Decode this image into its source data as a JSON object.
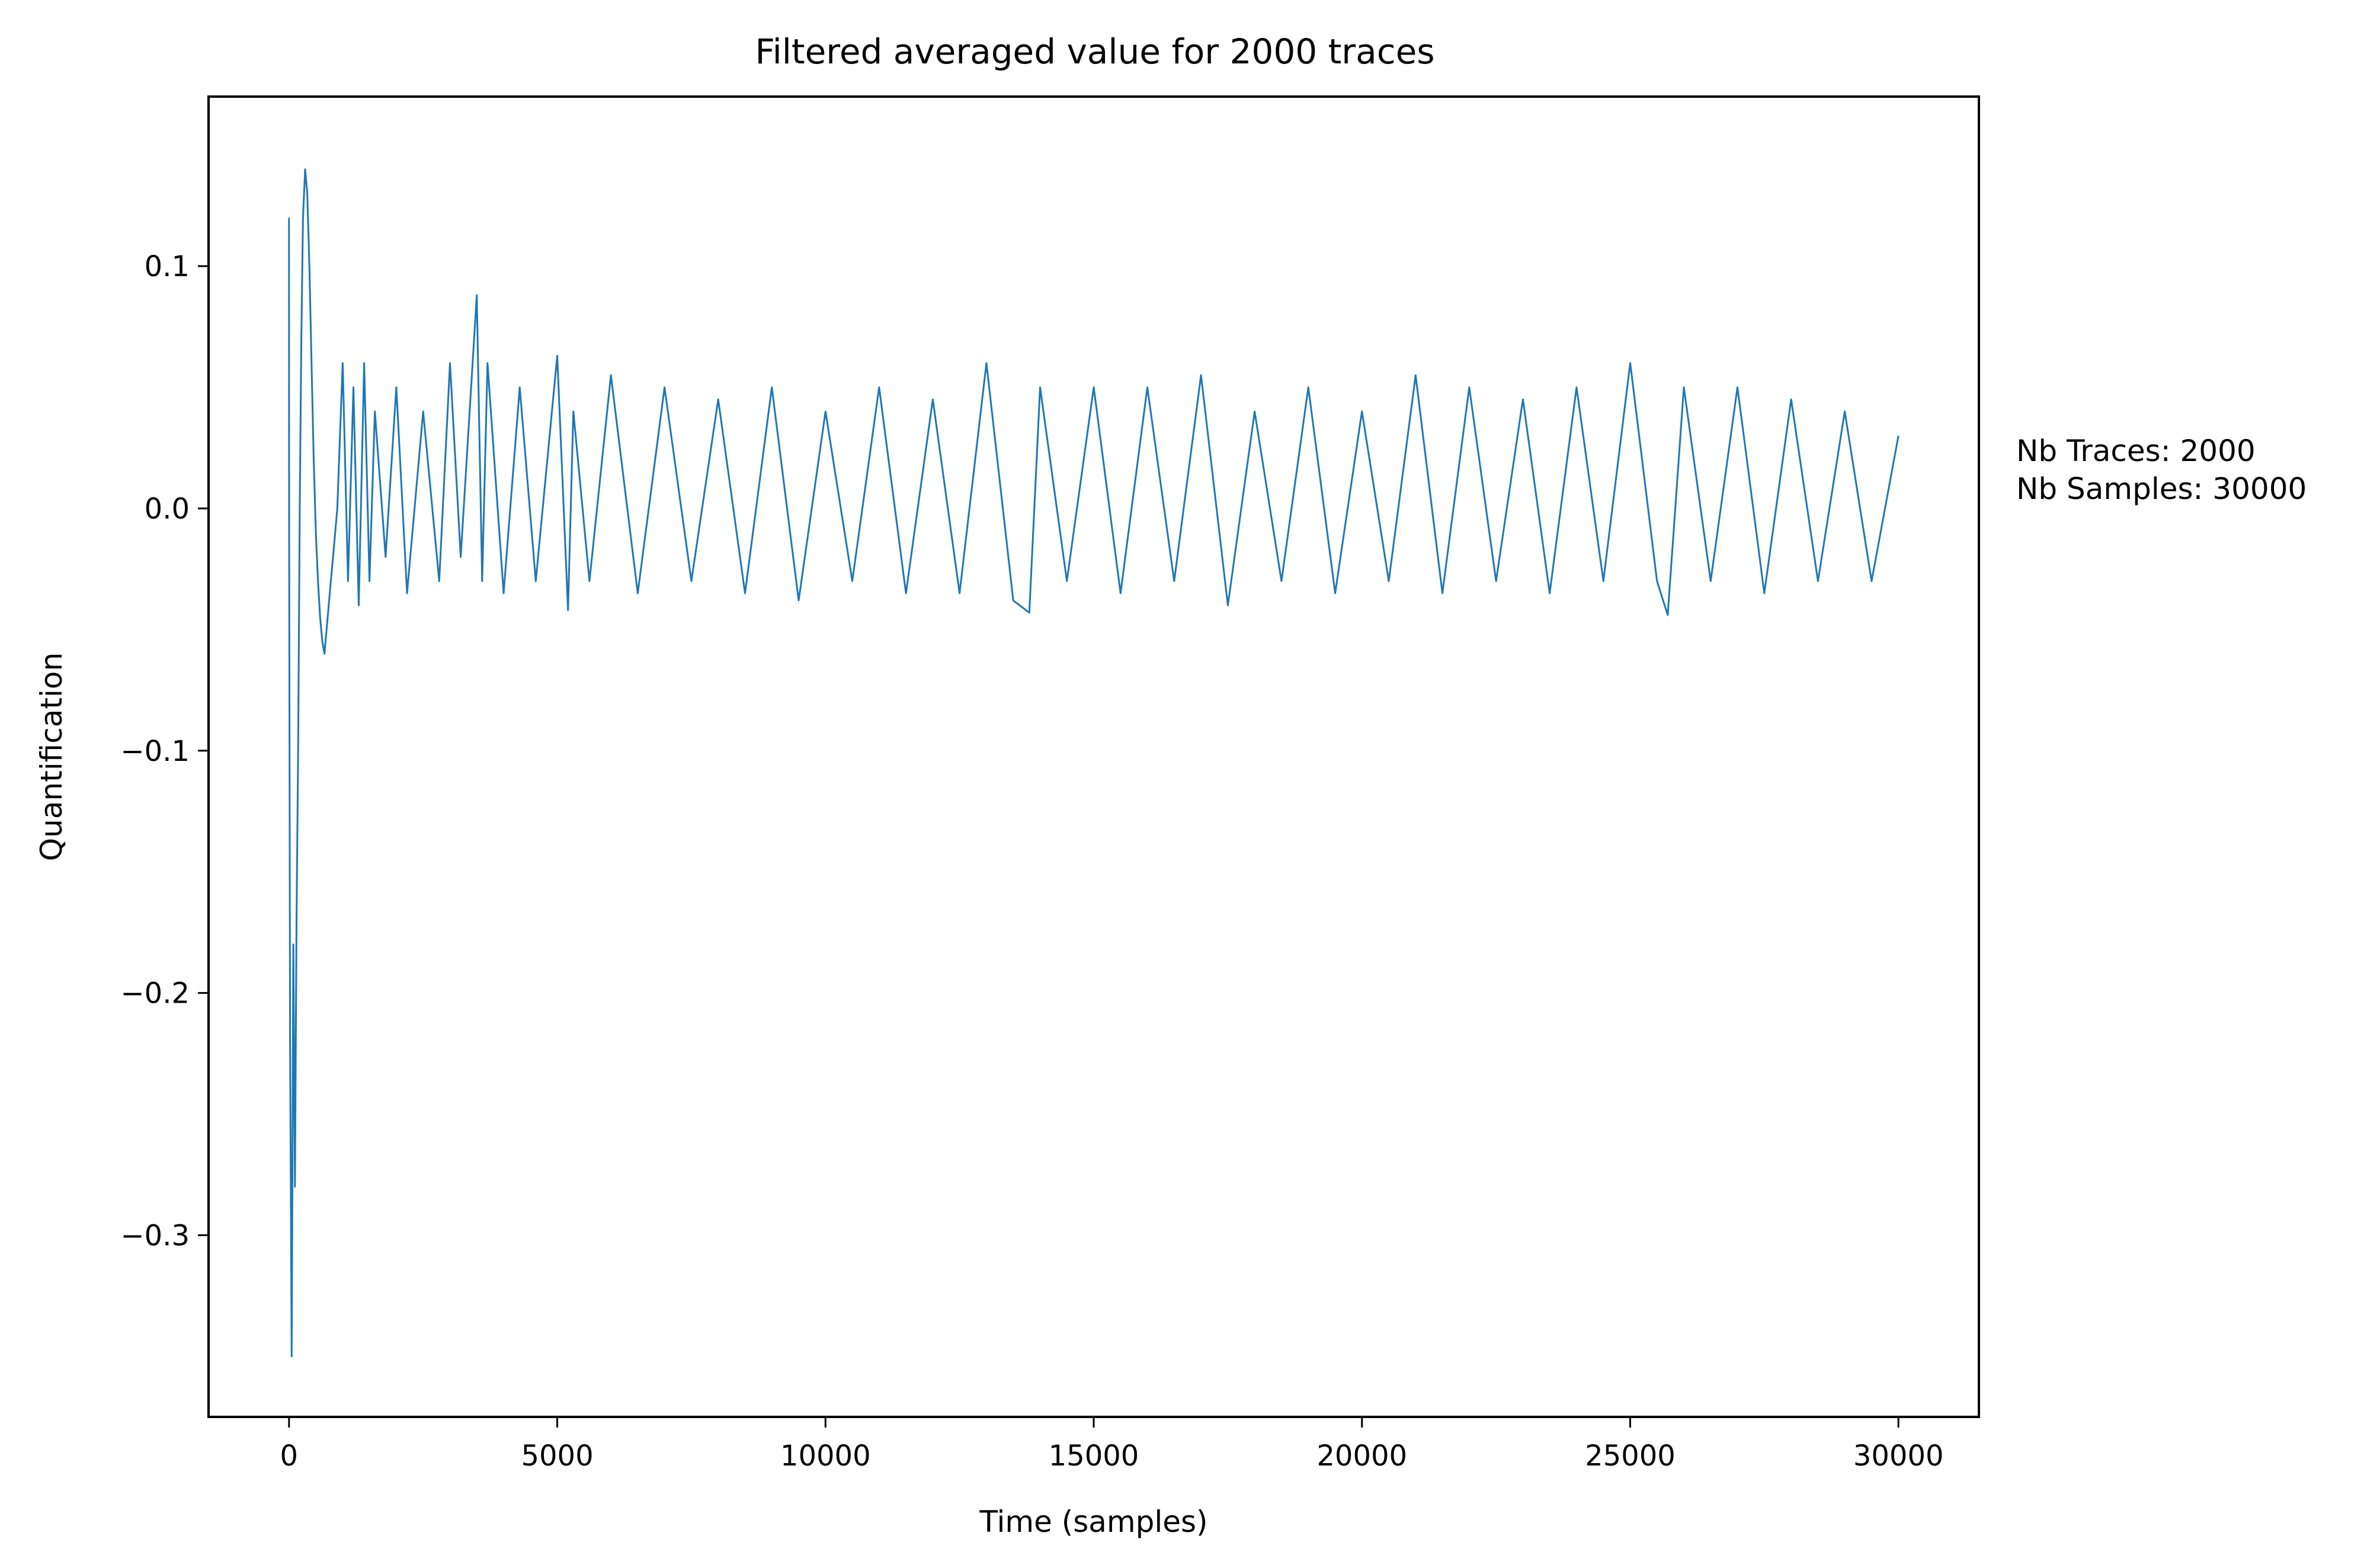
{
  "chart_data": {
    "type": "line",
    "title": "Filtered averaged value for 2000 traces",
    "xlabel": "Time (samples)",
    "ylabel": "Quantification",
    "xlim": [
      -1500,
      31500
    ],
    "ylim": [
      -0.375,
      0.17
    ],
    "x_ticks": [
      {
        "value": 0,
        "label": "0"
      },
      {
        "value": 5000,
        "label": "5000"
      },
      {
        "value": 10000,
        "label": "10000"
      },
      {
        "value": 15000,
        "label": "15000"
      },
      {
        "value": 20000,
        "label": "20000"
      },
      {
        "value": 25000,
        "label": "25000"
      },
      {
        "value": 30000,
        "label": "30000"
      }
    ],
    "y_ticks": [
      {
        "value": 0.1,
        "label": "0.1"
      },
      {
        "value": 0.0,
        "label": "0.0"
      },
      {
        "value": -0.1,
        "label": "−0.1"
      },
      {
        "value": -0.2,
        "label": "−0.2"
      },
      {
        "value": -0.3,
        "label": "−0.3"
      }
    ],
    "grid": false,
    "line_color": "#1f77b4",
    "annotations": [
      "Nb Traces: 2000",
      "Nb Samples: 30000"
    ],
    "series": [
      {
        "x": [
          0,
          1,
          20,
          50,
          80,
          110,
          140,
          170,
          200,
          230,
          260,
          300,
          340,
          380,
          420,
          460,
          500,
          540,
          580,
          620,
          660,
          700,
          740,
          780,
          820,
          860,
          900,
          950,
          1000,
          1100,
          1200,
          1300,
          1400,
          1500,
          1600,
          1800,
          2000,
          2200,
          2500,
          2800,
          3000,
          3200,
          3500,
          3600,
          3700,
          4000,
          4300,
          4600,
          5000,
          5200,
          5300,
          5600,
          6000,
          6500,
          7000,
          7500,
          8000,
          8500,
          9000,
          9500,
          10000,
          10500,
          11000,
          11500,
          12000,
          12500,
          13000,
          13500,
          13800,
          14000,
          14500,
          15000,
          15500,
          16000,
          16500,
          17000,
          17500,
          18000,
          18500,
          19000,
          19500,
          20000,
          20500,
          21000,
          21500,
          22000,
          22500,
          23000,
          23500,
          24000,
          24500,
          25000,
          25500,
          25700,
          26000,
          26500,
          27000,
          27500,
          28000,
          28500,
          29000,
          29500,
          30000
        ],
        "y": [
          0.12,
          0.0,
          -0.22,
          -0.35,
          -0.18,
          -0.28,
          -0.17,
          -0.1,
          0.0,
          0.07,
          0.12,
          0.14,
          0.13,
          0.1,
          0.06,
          0.02,
          -0.01,
          -0.03,
          -0.045,
          -0.055,
          -0.06,
          -0.05,
          -0.04,
          -0.03,
          -0.02,
          -0.01,
          0.0,
          0.03,
          0.06,
          -0.03,
          0.05,
          -0.04,
          0.06,
          -0.03,
          0.04,
          -0.02,
          0.05,
          -0.035,
          0.04,
          -0.03,
          0.06,
          -0.02,
          0.088,
          -0.03,
          0.06,
          -0.035,
          0.05,
          -0.03,
          0.063,
          -0.042,
          0.04,
          -0.03,
          0.055,
          -0.035,
          0.05,
          -0.03,
          0.045,
          -0.035,
          0.05,
          -0.038,
          0.04,
          -0.03,
          0.05,
          -0.035,
          0.045,
          -0.035,
          0.06,
          -0.038,
          -0.043,
          0.05,
          -0.03,
          0.05,
          -0.035,
          0.05,
          -0.03,
          0.055,
          -0.04,
          0.04,
          -0.03,
          0.05,
          -0.035,
          0.04,
          -0.03,
          0.055,
          -0.035,
          0.05,
          -0.03,
          0.045,
          -0.035,
          0.05,
          -0.03,
          0.06,
          -0.03,
          -0.044,
          0.05,
          -0.03,
          0.05,
          -0.035,
          0.045,
          -0.03,
          0.04,
          -0.03,
          0.03
        ]
      }
    ]
  }
}
